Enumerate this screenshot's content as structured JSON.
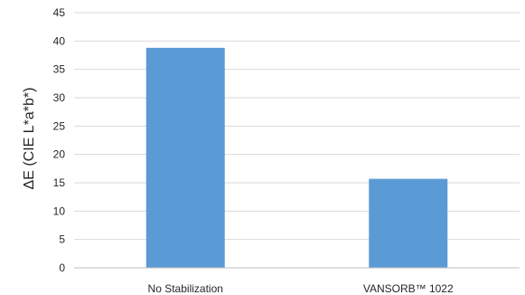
{
  "chart_data": {
    "type": "bar",
    "title": "",
    "xlabel": "",
    "ylabel": "ΔE (CIE L*a*b*)",
    "categories": [
      "No Stabilization",
      "VANSORB™ 1022"
    ],
    "values": [
      38.8,
      15.7
    ],
    "ylim": [
      0,
      45
    ],
    "yticks": [
      0,
      5,
      10,
      15,
      20,
      25,
      30,
      35,
      40,
      45
    ],
    "grid": true,
    "legend": "none",
    "bar_color": "#5b9bd5"
  }
}
